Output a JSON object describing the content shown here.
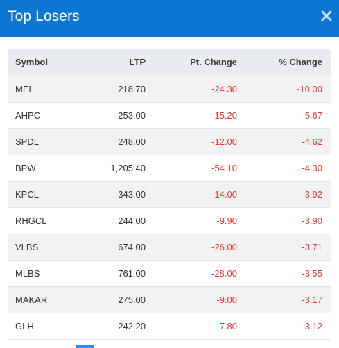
{
  "modal": {
    "title": "Top Losers"
  },
  "icons": {
    "close": "close-icon"
  },
  "colors": {
    "header_bg": "#0b77d2",
    "negative": "#e53935",
    "row_shade": "#f2f2f2"
  },
  "table": {
    "headers": [
      "Symbol",
      "LTP",
      "Pt. Change",
      "% Change"
    ],
    "rows": [
      {
        "symbol": "MEL",
        "ltp": "218.70",
        "pt_change": "-24.30",
        "pct_change": "-10.00"
      },
      {
        "symbol": "AHPC",
        "ltp": "253.00",
        "pt_change": "-15.20",
        "pct_change": "-5.67"
      },
      {
        "symbol": "SPDL",
        "ltp": "248.00",
        "pt_change": "-12.00",
        "pct_change": "-4.62"
      },
      {
        "symbol": "BPW",
        "ltp": "1,205.40",
        "pt_change": "-54.10",
        "pct_change": "-4.30"
      },
      {
        "symbol": "KPCL",
        "ltp": "343.00",
        "pt_change": "-14.00",
        "pct_change": "-3.92"
      },
      {
        "symbol": "RHGCL",
        "ltp": "244.00",
        "pt_change": "-9.90",
        "pct_change": "-3.90"
      },
      {
        "symbol": "VLBS",
        "ltp": "674.00",
        "pt_change": "-26.00",
        "pct_change": "-3.71"
      },
      {
        "symbol": "MLBS",
        "ltp": "761.00",
        "pt_change": "-28.00",
        "pct_change": "-3.55"
      },
      {
        "symbol": "MAKAR",
        "ltp": "275.00",
        "pt_change": "-9.00",
        "pct_change": "-3.17"
      },
      {
        "symbol": "GLH",
        "ltp": "242.20",
        "pt_change": "-7.80",
        "pct_change": "-3.12"
      }
    ]
  }
}
